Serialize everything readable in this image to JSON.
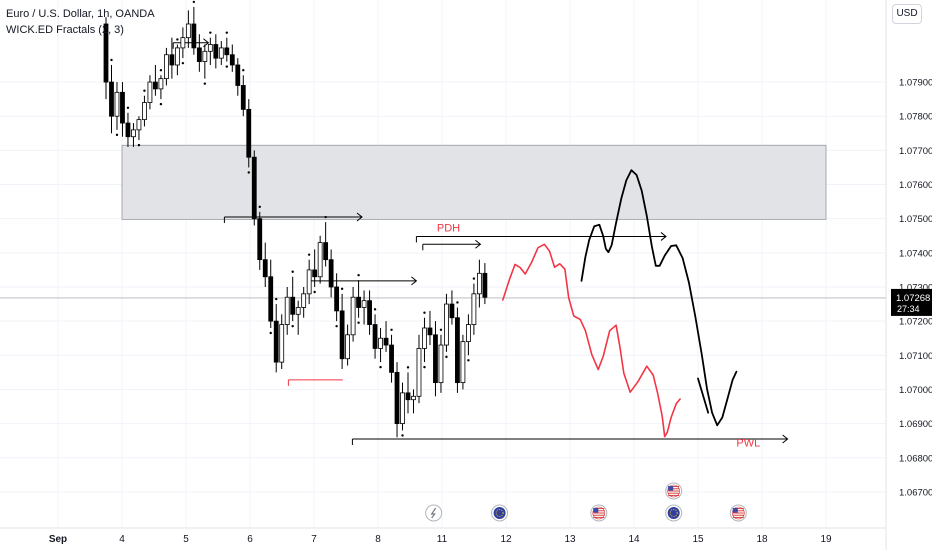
{
  "header": {
    "title": "Euro / U.S. Dollar, 1h, OANDA",
    "indicator": "WICK.ED Fractals (2, 3)",
    "currency": "USD"
  },
  "colors": {
    "bull": "#000000",
    "bear": "#000000",
    "zone_fill": "#e2e3e6",
    "zone_stroke": "#9598a1",
    "red_path": "#f23645",
    "black_path": "#000000",
    "price_tag_bg": "#000000",
    "price_line": "#b2b5be",
    "grid": "#f0f3fa"
  },
  "chart_data": {
    "type": "candlestick",
    "title": "Euro / U.S. Dollar, 1h, OANDA",
    "x_unit": "days (September)",
    "ylim": [
      1.0665,
      1.0813
    ],
    "y_ticks": [
      1.067,
      1.068,
      1.069,
      1.07,
      1.071,
      1.072,
      1.073,
      1.074,
      1.075,
      1.076,
      1.077,
      1.078,
      1.079
    ],
    "y_tick_labels": [
      "1.06700",
      "1.06800",
      "1.06900",
      "1.07000",
      "1.07100",
      "1.07200",
      "1.07300",
      "1.07400",
      "1.07500",
      "1.07600",
      "1.07700",
      "1.07800",
      "1.07900"
    ],
    "x_ticks": [
      3,
      4,
      5,
      6,
      7,
      8,
      11,
      12,
      13,
      14,
      15,
      18,
      19
    ],
    "x_tick_labels": [
      "Sep",
      "4",
      "5",
      "6",
      "7",
      "8",
      "11",
      "12",
      "13",
      "14",
      "15",
      "18",
      "19"
    ],
    "x_tick_screen_day": [
      3,
      4,
      5,
      6,
      7,
      8,
      9,
      10,
      11,
      12,
      13,
      14,
      15
    ],
    "current_price": {
      "value": 1.07268,
      "label": "1.07268",
      "countdown": "27:34"
    },
    "candles": [
      [
        1.0807,
        1.0809,
        1.0785,
        1.079
      ],
      [
        1.079,
        1.0795,
        1.0775,
        1.078
      ],
      [
        1.078,
        1.079,
        1.0776,
        1.0787
      ],
      [
        1.0787,
        1.079,
        1.0774,
        1.0778
      ],
      [
        1.0778,
        1.0781,
        1.0771,
        1.0774
      ],
      [
        1.0774,
        1.0778,
        1.0771,
        1.0776
      ],
      [
        1.0776,
        1.078,
        1.0773,
        1.0779
      ],
      [
        1.0779,
        1.0786,
        1.0777,
        1.0784
      ],
      [
        1.0784,
        1.0792,
        1.0782,
        1.079
      ],
      [
        1.079,
        1.0795,
        1.0786,
        1.0788
      ],
      [
        1.0788,
        1.0792,
        1.0785,
        1.0791
      ],
      [
        1.0791,
        1.08,
        1.0789,
        1.0798
      ],
      [
        1.0798,
        1.0803,
        1.0791,
        1.0795
      ],
      [
        1.0795,
        1.0801,
        1.0792,
        1.08
      ],
      [
        1.08,
        1.0806,
        1.0797,
        1.0803
      ],
      [
        1.0803,
        1.0811,
        1.08,
        1.0807
      ],
      [
        1.0807,
        1.0812,
        1.0798,
        1.08
      ],
      [
        1.08,
        1.0804,
        1.0793,
        1.0796
      ],
      [
        1.0796,
        1.0801,
        1.0791,
        1.0799
      ],
      [
        1.0799,
        1.0803,
        1.0795,
        1.0801
      ],
      [
        1.0801,
        1.0804,
        1.0794,
        1.0797
      ],
      [
        1.0797,
        1.0802,
        1.0795,
        1.08
      ],
      [
        1.08,
        1.0803,
        1.0796,
        1.0798
      ],
      [
        1.0798,
        1.0801,
        1.0793,
        1.0795
      ],
      [
        1.0795,
        1.0797,
        1.0786,
        1.0789
      ],
      [
        1.0789,
        1.0792,
        1.078,
        1.0782
      ],
      [
        1.0782,
        1.0785,
        1.0765,
        1.0768
      ],
      [
        1.0768,
        1.077,
        1.0748,
        1.075
      ],
      [
        1.075,
        1.0752,
        1.0735,
        1.0738
      ],
      [
        1.0738,
        1.0743,
        1.073,
        1.0733
      ],
      [
        1.0733,
        1.0738,
        1.0718,
        1.072
      ],
      [
        1.072,
        1.0725,
        1.0705,
        1.0708
      ],
      [
        1.0708,
        1.0722,
        1.0706,
        1.0719
      ],
      [
        1.0719,
        1.073,
        1.0716,
        1.0727
      ],
      [
        1.0727,
        1.0733,
        1.072,
        1.0722
      ],
      [
        1.0722,
        1.0726,
        1.0716,
        1.0724
      ],
      [
        1.0724,
        1.073,
        1.0721,
        1.0728
      ],
      [
        1.0728,
        1.0738,
        1.0725,
        1.0735
      ],
      [
        1.0735,
        1.0741,
        1.073,
        1.0733
      ],
      [
        1.0733,
        1.0745,
        1.0731,
        1.0743
      ],
      [
        1.0743,
        1.0749,
        1.0736,
        1.0738
      ],
      [
        1.0738,
        1.0741,
        1.0727,
        1.073
      ],
      [
        1.073,
        1.0734,
        1.072,
        1.0723
      ],
      [
        1.0723,
        1.0728,
        1.0706,
        1.0709
      ],
      [
        1.0709,
        1.0719,
        1.0707,
        1.0716
      ],
      [
        1.0716,
        1.073,
        1.0714,
        1.0727
      ],
      [
        1.0727,
        1.0732,
        1.0721,
        1.0724
      ],
      [
        1.0724,
        1.0729,
        1.0719,
        1.0726
      ],
      [
        1.0726,
        1.0729,
        1.0716,
        1.0719
      ],
      [
        1.0719,
        1.0722,
        1.0709,
        1.0712
      ],
      [
        1.0712,
        1.0718,
        1.0708,
        1.0715
      ],
      [
        1.0715,
        1.072,
        1.0711,
        1.0713
      ],
      [
        1.0713,
        1.0716,
        1.0702,
        1.0705
      ],
      [
        1.0705,
        1.0708,
        1.0686,
        1.069
      ],
      [
        1.069,
        1.0702,
        1.0688,
        1.0699
      ],
      [
        1.0699,
        1.0705,
        1.0693,
        1.0697
      ],
      [
        1.0697,
        1.07,
        1.0693,
        1.0698
      ],
      [
        1.0698,
        1.0716,
        1.0696,
        1.0712
      ],
      [
        1.0712,
        1.0721,
        1.0708,
        1.0718
      ],
      [
        1.0718,
        1.0723,
        1.0713,
        1.0716
      ],
      [
        1.0716,
        1.072,
        1.0698,
        1.0702
      ],
      [
        1.0702,
        1.0716,
        1.0699,
        1.0713
      ],
      [
        1.0713,
        1.0728,
        1.0711,
        1.0725
      ],
      [
        1.0725,
        1.0729,
        1.0719,
        1.0721
      ],
      [
        1.0721,
        1.0724,
        1.0699,
        1.0702
      ],
      [
        1.0702,
        1.0716,
        1.07,
        1.0714
      ],
      [
        1.0714,
        1.0722,
        1.071,
        1.0719
      ],
      [
        1.0719,
        1.0731,
        1.0716,
        1.0728
      ],
      [
        1.0728,
        1.0738,
        1.0724,
        1.0734
      ],
      [
        1.0734,
        1.0737,
        1.0725,
        1.0727
      ]
    ],
    "zones": [
      {
        "kind": "supply",
        "y1": 1.07498,
        "y2": 1.07715,
        "x1_day": 4.0,
        "x2_day": 15.0
      }
    ],
    "levels": [
      {
        "y": 1.07505,
        "x1_day": 5.6,
        "x2_day": 7.75,
        "color": "#000000",
        "arrow": true
      },
      {
        "y": 1.07448,
        "x1_day": 8.6,
        "x2_day": 12.5,
        "color": "#000000",
        "arrow": true,
        "label": "PDH"
      },
      {
        "y": 1.07425,
        "x1_day": 8.7,
        "x2_day": 9.6,
        "color": "#000000",
        "arrow": true
      },
      {
        "y": 1.07318,
        "x1_day": 6.9,
        "x2_day": 8.6,
        "color": "#000000",
        "arrow": true
      },
      {
        "y": 1.07028,
        "x1_day": 6.6,
        "x2_day": 7.45,
        "color": "#f23645",
        "arrow": false
      },
      {
        "y": 1.06855,
        "x1_day": 7.6,
        "x2_day": 14.4,
        "color": "#000000",
        "arrow": true,
        "label": "PWL"
      },
      {
        "y": 1.08015,
        "x1_day": 4.8,
        "x2_day": 5.35,
        "color": "#000000",
        "arrow": true
      }
    ],
    "projection_red": [
      [
        9.95,
        1.07262
      ],
      [
        10.05,
        1.0732
      ],
      [
        10.14,
        1.07366
      ],
      [
        10.22,
        1.07357
      ],
      [
        10.3,
        1.07338
      ],
      [
        10.4,
        1.07372
      ],
      [
        10.5,
        1.07415
      ],
      [
        10.6,
        1.07425
      ],
      [
        10.68,
        1.07405
      ],
      [
        10.76,
        1.07358
      ],
      [
        10.84,
        1.07368
      ],
      [
        10.92,
        1.07352
      ],
      [
        10.98,
        1.07268
      ],
      [
        11.06,
        1.07215
      ],
      [
        11.16,
        1.07205
      ],
      [
        11.24,
        1.07172
      ],
      [
        11.34,
        1.07102
      ],
      [
        11.44,
        1.07058
      ],
      [
        11.52,
        1.07098
      ],
      [
        11.62,
        1.07172
      ],
      [
        11.72,
        1.07188
      ],
      [
        11.78,
        1.07125
      ],
      [
        11.84,
        1.07048
      ],
      [
        11.94,
        1.06992
      ],
      [
        12.06,
        1.07022
      ],
      [
        12.2,
        1.07068
      ],
      [
        12.3,
        1.07042
      ],
      [
        12.37,
        1.06988
      ],
      [
        12.44,
        1.06922
      ],
      [
        12.48,
        1.06862
      ],
      [
        12.52,
        1.06875
      ],
      [
        12.58,
        1.06918
      ],
      [
        12.66,
        1.06958
      ],
      [
        12.72,
        1.06972
      ]
    ],
    "projection_black": [
      [
        11.18,
        1.07318
      ],
      [
        11.24,
        1.07388
      ],
      [
        11.3,
        1.07438
      ],
      [
        11.38,
        1.07478
      ],
      [
        11.46,
        1.07482
      ],
      [
        11.52,
        1.07448
      ],
      [
        11.56,
        1.07412
      ],
      [
        11.6,
        1.07402
      ],
      [
        11.65,
        1.07422
      ],
      [
        11.72,
        1.07488
      ],
      [
        11.8,
        1.07558
      ],
      [
        11.88,
        1.07612
      ],
      [
        11.96,
        1.07642
      ],
      [
        12.04,
        1.07628
      ],
      [
        12.12,
        1.07582
      ],
      [
        12.2,
        1.07508
      ],
      [
        12.28,
        1.07418
      ],
      [
        12.34,
        1.07362
      ],
      [
        12.4,
        1.07362
      ],
      [
        12.48,
        1.07392
      ],
      [
        12.58,
        1.0742
      ],
      [
        12.66,
        1.07422
      ],
      [
        12.76,
        1.07385
      ],
      [
        12.86,
        1.07312
      ],
      [
        12.96,
        1.07212
      ],
      [
        13.06,
        1.07102
      ],
      [
        13.14,
        1.07002
      ],
      [
        13.22,
        1.06932
      ],
      [
        13.3,
        1.06895
      ],
      [
        13.38,
        1.06918
      ],
      [
        13.46,
        1.06972
      ],
      [
        13.54,
        1.07028
      ],
      [
        13.6,
        1.07052
      ]
    ],
    "projection_black_tail": [
      [
        13.0,
        1.07032
      ],
      [
        13.08,
        1.06982
      ],
      [
        13.16,
        1.06932
      ]
    ],
    "annotations": [
      {
        "text": "PDH",
        "x_day": 8.92,
        "y": 1.07445,
        "color": "#f23645"
      },
      {
        "text": "PWL",
        "x_day": 13.6,
        "y": 1.06815,
        "color": "#f23645"
      }
    ],
    "event_icons": [
      {
        "type": "flash-icon",
        "x_day": 8.87,
        "row": 0
      },
      {
        "type": "flag-eu-icon",
        "x_day": 9.9,
        "row": 0
      },
      {
        "type": "flag-us-icon",
        "x_day": 11.45,
        "row": 0
      },
      {
        "type": "flag-eu-icon",
        "x_day": 12.62,
        "row": 0
      },
      {
        "type": "flag-us-icon",
        "x_day": 12.62,
        "row": 1
      },
      {
        "type": "flag-us-icon",
        "x_day": 13.63,
        "row": 0
      }
    ]
  }
}
